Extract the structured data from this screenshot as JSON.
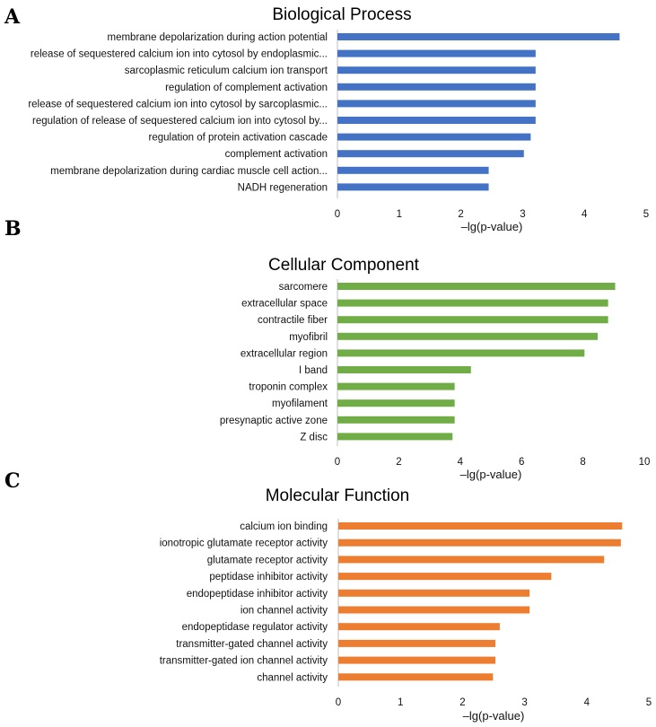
{
  "chart_data": [
    {
      "panel": "A",
      "type": "bar",
      "orientation": "horizontal",
      "title": "Biological Process",
      "xlabel": "–lg(p-value)",
      "xlim": [
        0,
        5
      ],
      "xticks": [
        0,
        1,
        2,
        3,
        4,
        5
      ],
      "color": "#4472C4",
      "categories": [
        "membrane depolarization during action potential",
        "release of sequestered calcium ion into cytosol by endoplasmic...",
        "sarcoplasmic reticulum calcium ion transport",
        "regulation of complement activation",
        "release of sequestered calcium ion into cytosol by sarcoplasmic...",
        "regulation of release of sequestered calcium ion into cytosol by...",
        "regulation of protein activation cascade",
        "complement activation",
        "membrane depolarization during cardiac muscle cell action...",
        "NADH regeneration"
      ],
      "values": [
        4.57,
        3.21,
        3.21,
        3.21,
        3.21,
        3.21,
        3.13,
        3.02,
        2.45,
        2.45
      ]
    },
    {
      "panel": "B",
      "type": "bar",
      "orientation": "horizontal",
      "title": "Cellular Component",
      "xlabel": "–lg(p-value)",
      "xlim": [
        0,
        10
      ],
      "xticks": [
        0,
        2,
        4,
        6,
        8,
        10
      ],
      "color": "#70AD47",
      "categories": [
        "sarcomere",
        "extracellular space",
        "contractile fiber",
        "myofibril",
        "extracellular region",
        "I band",
        "troponin complex",
        "myofilament",
        "presynaptic active zone",
        "Z disc"
      ],
      "values": [
        9.05,
        8.82,
        8.82,
        8.48,
        8.05,
        4.35,
        3.82,
        3.82,
        3.82,
        3.75
      ]
    },
    {
      "panel": "C",
      "type": "bar",
      "orientation": "horizontal",
      "title": "Molecular Function",
      "xlabel": "–lg(p-value)",
      "xlim": [
        0,
        5
      ],
      "xticks": [
        0,
        1,
        2,
        3,
        4,
        5
      ],
      "color": "#ED7D31",
      "categories": [
        "calcium ion binding",
        "ionotropic glutamate receptor activity",
        "glutamate receptor activity",
        "peptidase inhibitor activity",
        "endopeptidase inhibitor activity",
        "ion channel activity",
        "endopeptidase regulator activity",
        "transmitter-gated channel activity",
        "transmitter-gated ion channel activity",
        "channel activity"
      ],
      "values": [
        4.57,
        4.55,
        4.28,
        3.43,
        3.08,
        3.08,
        2.6,
        2.53,
        2.53,
        2.49
      ]
    }
  ]
}
